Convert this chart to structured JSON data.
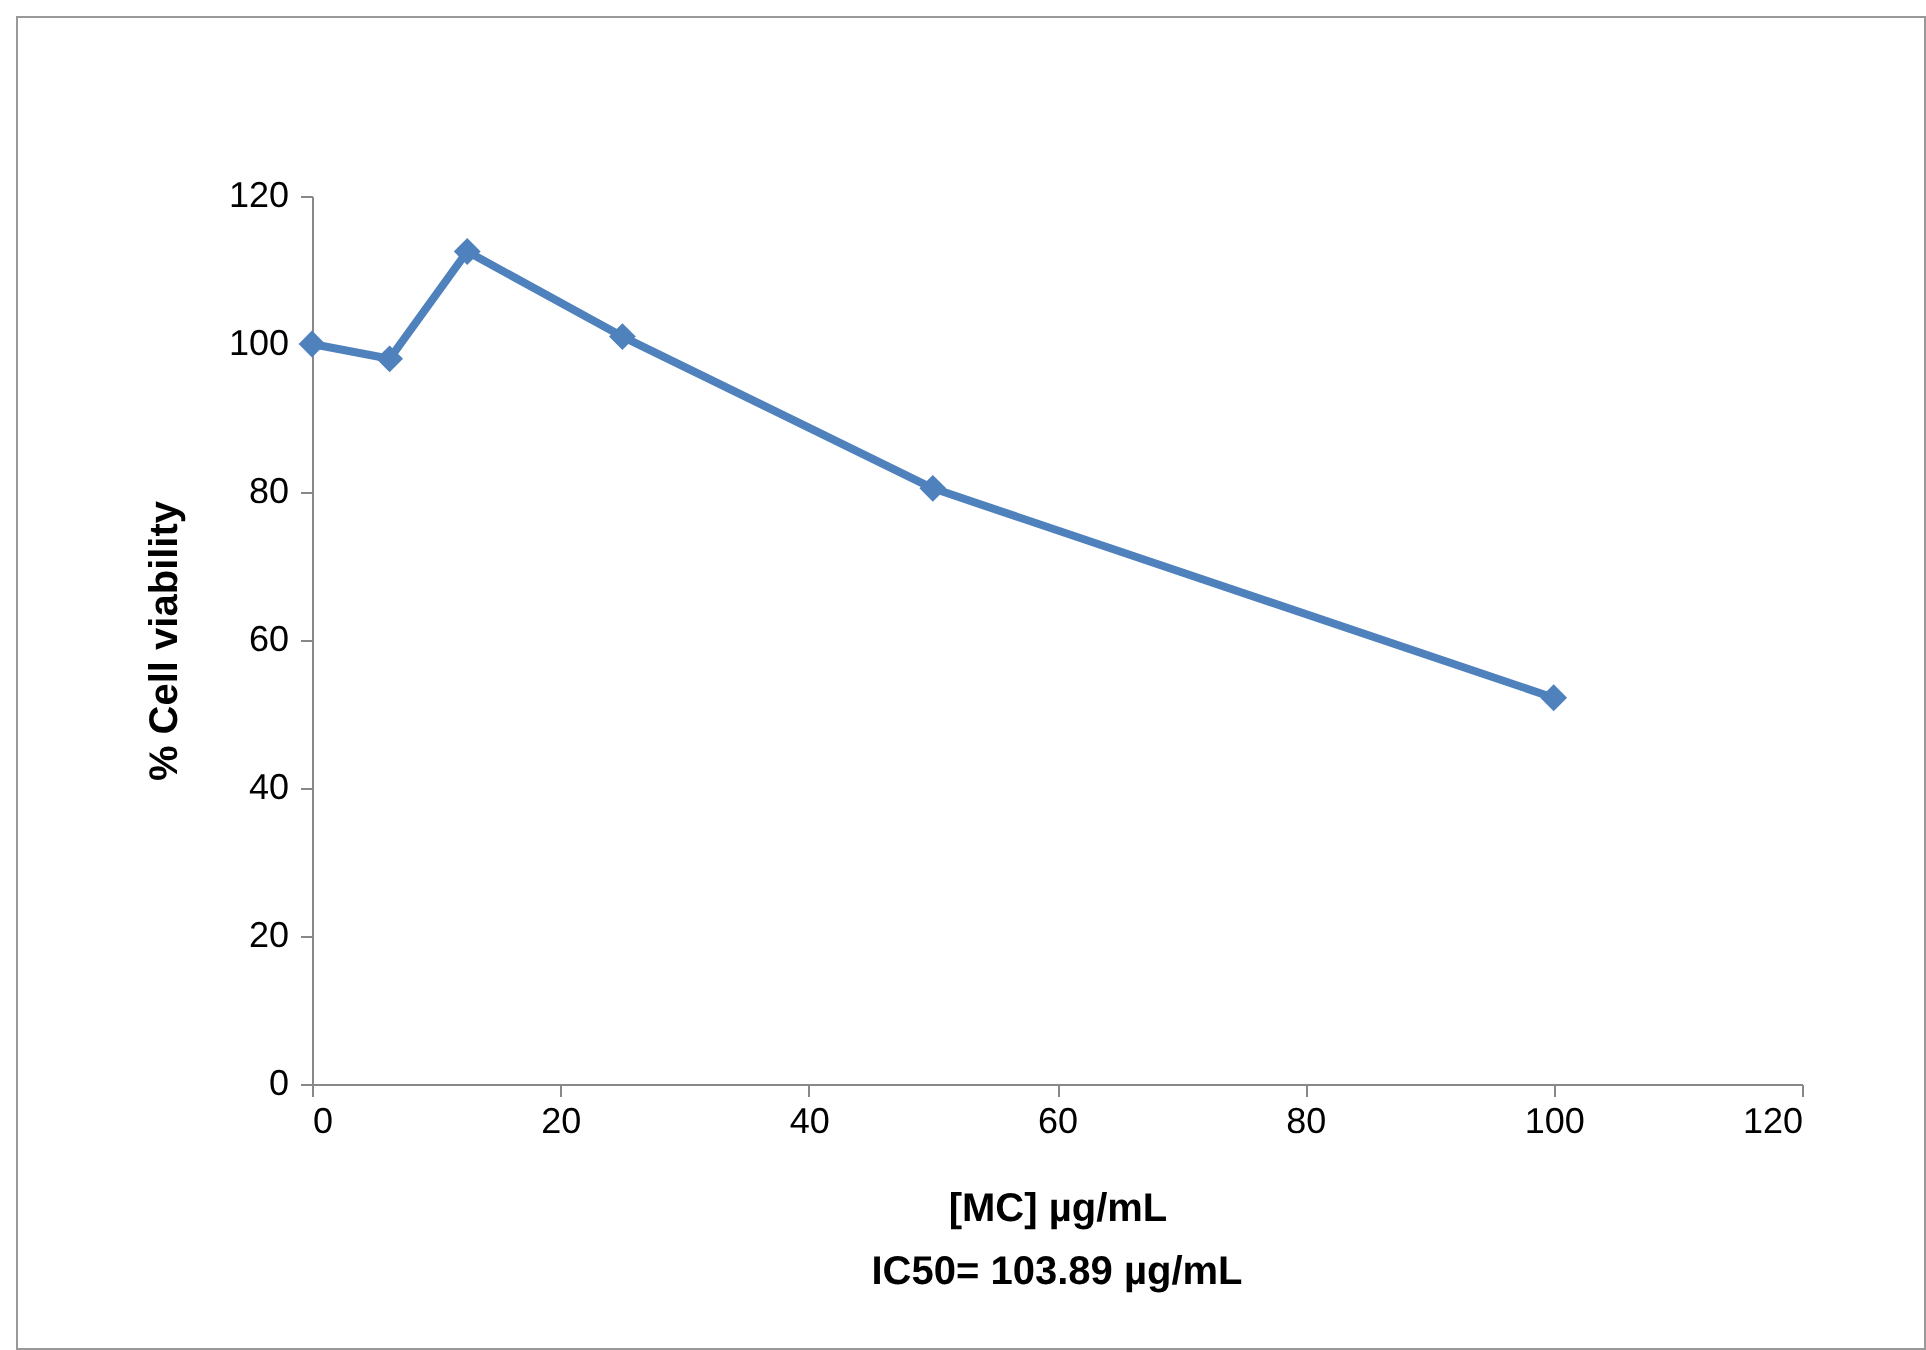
{
  "chart_data": {
    "type": "line",
    "xlabel": "[MC] µg/mL",
    "ylabel": "% Cell viability",
    "x": [
      0,
      6.25,
      12.5,
      25,
      50,
      100
    ],
    "series": [
      {
        "color": "#4f81bd",
        "values": [
          100,
          98,
          112.5,
          101,
          80.5,
          52.2
        ]
      }
    ],
    "xlim": [
      0,
      120
    ],
    "xticks": [
      0,
      20,
      40,
      60,
      80,
      100,
      120
    ],
    "ylim": [
      0,
      120
    ],
    "yticks": [
      0,
      20,
      40,
      60,
      80,
      100,
      120
    ],
    "grid": false,
    "marker": "diamond",
    "line_style": "solid",
    "annotations": [
      "IC50= 103.89 µg/mL"
    ]
  }
}
